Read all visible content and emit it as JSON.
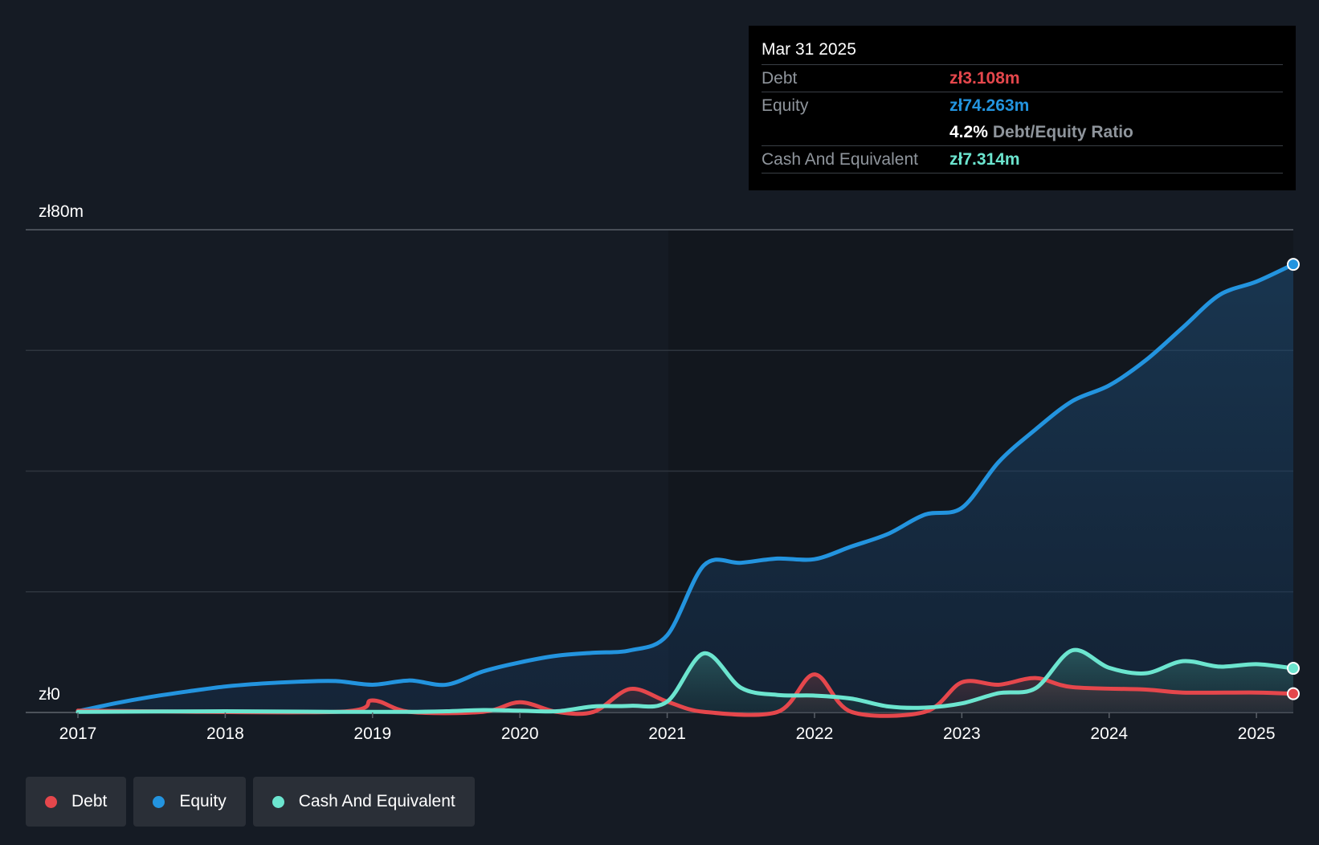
{
  "tooltip": {
    "date": "Mar 31 2025",
    "debt_label": "Debt",
    "debt_value": "zł3.108m",
    "equity_label": "Equity",
    "equity_value": "zł74.263m",
    "ratio_value": "4.2%",
    "ratio_label": "Debt/Equity Ratio",
    "cash_label": "Cash And Equivalent",
    "cash_value": "zł7.314m"
  },
  "legend": {
    "debt": "Debt",
    "equity": "Equity",
    "cash": "Cash And Equivalent"
  },
  "colors": {
    "debt": "#e5474c",
    "equity": "#2394df",
    "cash": "#6ce5cf",
    "background": "#151b24",
    "grid": "#3a4049"
  },
  "chart_data": {
    "type": "area",
    "y_tick_labels": [
      "zł0",
      "zł80m"
    ],
    "ylim": [
      0,
      80
    ],
    "y_unit": "zł m",
    "x_tick_labels": [
      "2017",
      "2018",
      "2019",
      "2020",
      "2021",
      "2022",
      "2023",
      "2024",
      "2025"
    ],
    "xlim": [
      2017.0,
      2025.25
    ],
    "grid": true,
    "legend_position": "bottom-left",
    "series": [
      {
        "name": "Debt",
        "color": "#e5474c",
        "points": [
          [
            2017.0,
            0.3
          ],
          [
            2018.75,
            0.1
          ],
          [
            2019.0,
            2.0
          ],
          [
            2019.25,
            0.1
          ],
          [
            2019.75,
            0.1
          ],
          [
            2020.0,
            1.7
          ],
          [
            2020.25,
            0.1
          ],
          [
            2020.5,
            0.1
          ],
          [
            2020.75,
            3.9
          ],
          [
            2021.0,
            1.8
          ],
          [
            2021.25,
            0.1
          ],
          [
            2021.75,
            0.1
          ],
          [
            2022.0,
            6.3
          ],
          [
            2022.25,
            0.1
          ],
          [
            2022.75,
            0.1
          ],
          [
            2023.0,
            5.0
          ],
          [
            2023.25,
            4.6
          ],
          [
            2023.5,
            5.7
          ],
          [
            2023.75,
            4.2
          ],
          [
            2024.25,
            3.8
          ],
          [
            2024.5,
            3.3
          ],
          [
            2025.0,
            3.3
          ],
          [
            2025.25,
            3.108
          ]
        ]
      },
      {
        "name": "Equity",
        "color": "#2394df",
        "points": [
          [
            2017.0,
            0.2
          ],
          [
            2017.25,
            1.5
          ],
          [
            2017.5,
            2.6
          ],
          [
            2017.75,
            3.5
          ],
          [
            2018.0,
            4.3
          ],
          [
            2018.25,
            4.8
          ],
          [
            2018.5,
            5.1
          ],
          [
            2018.75,
            5.2
          ],
          [
            2019.0,
            4.6
          ],
          [
            2019.25,
            5.3
          ],
          [
            2019.5,
            4.6
          ],
          [
            2019.75,
            6.8
          ],
          [
            2020.0,
            8.3
          ],
          [
            2020.25,
            9.4
          ],
          [
            2020.5,
            9.9
          ],
          [
            2020.75,
            10.3
          ],
          [
            2021.0,
            12.8
          ],
          [
            2021.25,
            24.4
          ],
          [
            2021.5,
            24.8
          ],
          [
            2021.75,
            25.5
          ],
          [
            2022.0,
            25.4
          ],
          [
            2022.25,
            27.5
          ],
          [
            2022.5,
            29.6
          ],
          [
            2022.75,
            32.8
          ],
          [
            2023.0,
            33.9
          ],
          [
            2023.25,
            41.5
          ],
          [
            2023.5,
            46.9
          ],
          [
            2023.75,
            51.6
          ],
          [
            2024.0,
            54.2
          ],
          [
            2024.25,
            58.4
          ],
          [
            2024.5,
            63.8
          ],
          [
            2024.75,
            69.2
          ],
          [
            2025.0,
            71.4
          ],
          [
            2025.25,
            74.263
          ]
        ]
      },
      {
        "name": "Cash And Equivalent",
        "color": "#6ce5cf",
        "points": [
          [
            2017.0,
            0.1
          ],
          [
            2018.0,
            0.2
          ],
          [
            2018.75,
            0.1
          ],
          [
            2019.25,
            0.1
          ],
          [
            2019.5,
            0.2
          ],
          [
            2019.75,
            0.4
          ],
          [
            2020.0,
            0.3
          ],
          [
            2020.25,
            0.2
          ],
          [
            2020.5,
            1.0
          ],
          [
            2020.75,
            1.1
          ],
          [
            2021.0,
            1.8
          ],
          [
            2021.25,
            9.8
          ],
          [
            2021.5,
            4.1
          ],
          [
            2021.75,
            2.9
          ],
          [
            2022.0,
            2.8
          ],
          [
            2022.25,
            2.3
          ],
          [
            2022.5,
            1.0
          ],
          [
            2022.75,
            0.8
          ],
          [
            2023.0,
            1.5
          ],
          [
            2023.25,
            3.2
          ],
          [
            2023.5,
            4.0
          ],
          [
            2023.75,
            10.3
          ],
          [
            2024.0,
            7.4
          ],
          [
            2024.25,
            6.5
          ],
          [
            2024.5,
            8.5
          ],
          [
            2024.75,
            7.6
          ],
          [
            2025.0,
            8.0
          ],
          [
            2025.25,
            7.314
          ]
        ]
      }
    ]
  }
}
